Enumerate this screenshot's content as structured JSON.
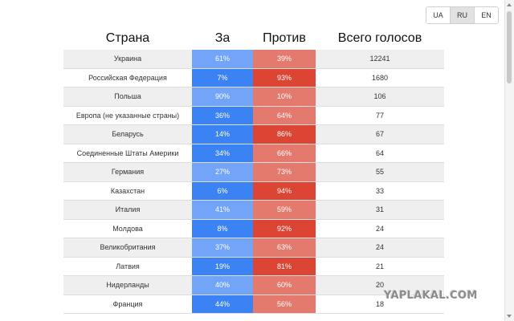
{
  "language_switcher": {
    "options": [
      "UA",
      "RU",
      "EN"
    ],
    "selected": "RU"
  },
  "table": {
    "headers": {
      "country": "Страна",
      "for": "За",
      "against": "Против",
      "total": "Всего голосов"
    },
    "colors": {
      "for_dark": "#3b82f4",
      "for_light": "#72a5f8",
      "against_dark": "#dc4434",
      "against_light": "#e47a6e"
    },
    "rows": [
      {
        "country": "Украина",
        "for": "61%",
        "against": "39%",
        "total": "12241"
      },
      {
        "country": "Российская Федерация",
        "for": "7%",
        "against": "93%",
        "total": "1680"
      },
      {
        "country": "Польша",
        "for": "90%",
        "against": "10%",
        "total": "106"
      },
      {
        "country": "Европа (не указанные страны)",
        "for": "36%",
        "against": "64%",
        "total": "77"
      },
      {
        "country": "Беларусь",
        "for": "14%",
        "against": "86%",
        "total": "67"
      },
      {
        "country": "Соединенные Штаты Америки",
        "for": "34%",
        "against": "66%",
        "total": "64"
      },
      {
        "country": "Германия",
        "for": "27%",
        "against": "73%",
        "total": "55"
      },
      {
        "country": "Казахстан",
        "for": "6%",
        "against": "94%",
        "total": "33"
      },
      {
        "country": "Италия",
        "for": "41%",
        "against": "59%",
        "total": "31"
      },
      {
        "country": "Молдова",
        "for": "8%",
        "against": "92%",
        "total": "24"
      },
      {
        "country": "Великобритания",
        "for": "37%",
        "against": "63%",
        "total": "24"
      },
      {
        "country": "Латвия",
        "for": "19%",
        "against": "81%",
        "total": "21"
      },
      {
        "country": "Нидерланды",
        "for": "40%",
        "against": "60%",
        "total": "20"
      },
      {
        "country": "Франция",
        "for": "44%",
        "against": "56%",
        "total": "18"
      }
    ]
  },
  "watermark": "YAPLAKAL.COM"
}
